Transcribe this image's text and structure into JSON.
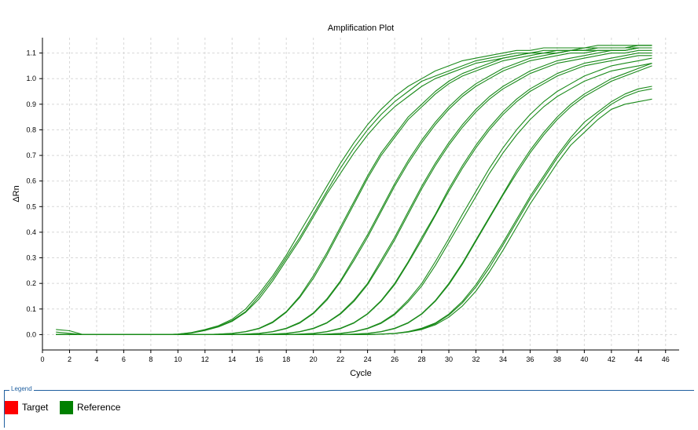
{
  "chart_data": {
    "type": "line",
    "title": "Amplification Plot",
    "xlabel": "Cycle",
    "ylabel": "ΔRn",
    "xlim": [
      0,
      47
    ],
    "ylim": [
      -0.06,
      1.16
    ],
    "xticks": [
      0,
      2,
      4,
      6,
      8,
      10,
      12,
      14,
      16,
      18,
      20,
      22,
      24,
      26,
      28,
      30,
      32,
      34,
      36,
      38,
      40,
      42,
      44,
      46
    ],
    "yticks": [
      0.0,
      0.1,
      0.2,
      0.3,
      0.4,
      0.5,
      0.6,
      0.7,
      0.8,
      0.9,
      1.0,
      1.1
    ],
    "grid": true,
    "line_color": "#1a8a1a",
    "x": [
      1,
      2,
      3,
      4,
      5,
      6,
      7,
      8,
      9,
      10,
      11,
      12,
      13,
      14,
      15,
      16,
      17,
      18,
      19,
      20,
      21,
      22,
      23,
      24,
      25,
      26,
      27,
      28,
      29,
      30,
      31,
      32,
      33,
      34,
      35,
      36,
      37,
      38,
      39,
      40,
      41,
      42,
      43,
      44,
      45
    ],
    "series": [
      {
        "values": [
          0.02,
          0.015,
          0.0,
          0.0,
          0.0,
          0.0,
          0.0,
          0.0,
          0.0,
          0.002,
          0.008,
          0.02,
          0.035,
          0.06,
          0.1,
          0.16,
          0.23,
          0.31,
          0.4,
          0.49,
          0.58,
          0.67,
          0.75,
          0.82,
          0.88,
          0.93,
          0.97,
          1.0,
          1.03,
          1.05,
          1.07,
          1.08,
          1.09,
          1.1,
          1.11,
          1.11,
          1.12,
          1.12,
          1.12,
          1.12,
          1.13,
          1.13,
          1.13,
          1.13,
          1.13
        ]
      },
      {
        "values": [
          0.01,
          0.005,
          0.0,
          0.0,
          0.0,
          0.0,
          0.0,
          0.0,
          0.0,
          0.002,
          0.007,
          0.018,
          0.032,
          0.055,
          0.09,
          0.15,
          0.22,
          0.3,
          0.38,
          0.47,
          0.56,
          0.65,
          0.73,
          0.8,
          0.86,
          0.91,
          0.95,
          0.99,
          1.01,
          1.03,
          1.05,
          1.07,
          1.08,
          1.09,
          1.1,
          1.1,
          1.11,
          1.11,
          1.11,
          1.12,
          1.12,
          1.12,
          1.12,
          1.12,
          1.12
        ]
      },
      {
        "values": [
          0.0,
          0.0,
          0.0,
          0.0,
          0.0,
          0.0,
          0.0,
          0.0,
          0.0,
          0.001,
          0.006,
          0.016,
          0.03,
          0.052,
          0.087,
          0.14,
          0.21,
          0.29,
          0.37,
          0.46,
          0.55,
          0.63,
          0.71,
          0.78,
          0.84,
          0.89,
          0.93,
          0.97,
          1.0,
          1.02,
          1.04,
          1.06,
          1.07,
          1.08,
          1.09,
          1.1,
          1.1,
          1.1,
          1.11,
          1.11,
          1.11,
          1.11,
          1.11,
          1.12,
          1.12
        ]
      },
      {
        "values": [
          0.0,
          0.0,
          0.0,
          0.0,
          0.0,
          0.0,
          0.0,
          0.0,
          0.0,
          0.0,
          0.0,
          0.0,
          0.002,
          0.005,
          0.012,
          0.025,
          0.05,
          0.09,
          0.15,
          0.23,
          0.32,
          0.42,
          0.52,
          0.62,
          0.71,
          0.78,
          0.85,
          0.9,
          0.95,
          0.99,
          1.02,
          1.04,
          1.06,
          1.08,
          1.09,
          1.1,
          1.1,
          1.11,
          1.11,
          1.12,
          1.12,
          1.12,
          1.12,
          1.13,
          1.13
        ]
      },
      {
        "values": [
          0.0,
          0.0,
          0.0,
          0.0,
          0.0,
          0.0,
          0.0,
          0.0,
          0.0,
          0.0,
          0.0,
          0.0,
          0.002,
          0.004,
          0.011,
          0.023,
          0.047,
          0.087,
          0.145,
          0.22,
          0.31,
          0.41,
          0.51,
          0.61,
          0.7,
          0.77,
          0.84,
          0.89,
          0.94,
          0.98,
          1.01,
          1.03,
          1.05,
          1.07,
          1.08,
          1.09,
          1.1,
          1.1,
          1.11,
          1.11,
          1.12,
          1.12,
          1.12,
          1.12,
          1.12
        ]
      },
      {
        "values": [
          0.0,
          0.0,
          0.0,
          0.0,
          0.0,
          0.0,
          0.0,
          0.0,
          0.0,
          0.0,
          0.0,
          0.0,
          0.0,
          0.0,
          0.002,
          0.005,
          0.012,
          0.025,
          0.048,
          0.085,
          0.14,
          0.21,
          0.3,
          0.39,
          0.49,
          0.59,
          0.68,
          0.76,
          0.83,
          0.89,
          0.94,
          0.98,
          1.01,
          1.04,
          1.06,
          1.08,
          1.09,
          1.1,
          1.11,
          1.11,
          1.12,
          1.12,
          1.12,
          1.13,
          1.13
        ]
      },
      {
        "values": [
          0.0,
          0.0,
          0.0,
          0.0,
          0.0,
          0.0,
          0.0,
          0.0,
          0.0,
          0.0,
          0.0,
          0.0,
          0.0,
          0.0,
          0.002,
          0.004,
          0.011,
          0.023,
          0.045,
          0.082,
          0.135,
          0.205,
          0.29,
          0.38,
          0.48,
          0.58,
          0.67,
          0.75,
          0.82,
          0.88,
          0.93,
          0.97,
          1.0,
          1.03,
          1.05,
          1.07,
          1.08,
          1.09,
          1.1,
          1.1,
          1.11,
          1.11,
          1.11,
          1.12,
          1.12
        ]
      },
      {
        "values": [
          0.0,
          0.0,
          0.0,
          0.0,
          0.0,
          0.0,
          0.0,
          0.0,
          0.0,
          0.0,
          0.0,
          0.0,
          0.0,
          0.0,
          0.0,
          0.0,
          0.002,
          0.005,
          0.012,
          0.025,
          0.047,
          0.083,
          0.135,
          0.2,
          0.29,
          0.38,
          0.48,
          0.58,
          0.67,
          0.75,
          0.82,
          0.88,
          0.93,
          0.97,
          1.0,
          1.03,
          1.05,
          1.07,
          1.08,
          1.09,
          1.1,
          1.11,
          1.11,
          1.12,
          1.12
        ]
      },
      {
        "values": [
          0.0,
          0.0,
          0.0,
          0.0,
          0.0,
          0.0,
          0.0,
          0.0,
          0.0,
          0.0,
          0.0,
          0.0,
          0.0,
          0.0,
          0.0,
          0.0,
          0.002,
          0.004,
          0.011,
          0.023,
          0.045,
          0.08,
          0.13,
          0.195,
          0.28,
          0.37,
          0.47,
          0.57,
          0.66,
          0.74,
          0.81,
          0.87,
          0.92,
          0.96,
          0.99,
          1.02,
          1.04,
          1.06,
          1.07,
          1.08,
          1.09,
          1.1,
          1.1,
          1.11,
          1.11
        ]
      },
      {
        "values": [
          0.0,
          0.0,
          0.0,
          0.0,
          0.0,
          0.0,
          0.0,
          0.0,
          0.0,
          0.0,
          0.0,
          0.0,
          0.0,
          0.0,
          0.0,
          0.0,
          0.0,
          0.0,
          0.002,
          0.005,
          0.012,
          0.025,
          0.047,
          0.082,
          0.133,
          0.2,
          0.285,
          0.38,
          0.47,
          0.57,
          0.66,
          0.74,
          0.81,
          0.87,
          0.92,
          0.96,
          0.99,
          1.02,
          1.04,
          1.06,
          1.07,
          1.08,
          1.09,
          1.1,
          1.1
        ]
      },
      {
        "values": [
          0.0,
          0.0,
          0.0,
          0.0,
          0.0,
          0.0,
          0.0,
          0.0,
          0.0,
          0.0,
          0.0,
          0.0,
          0.0,
          0.0,
          0.0,
          0.0,
          0.0,
          0.0,
          0.002,
          0.004,
          0.011,
          0.023,
          0.045,
          0.08,
          0.13,
          0.195,
          0.28,
          0.37,
          0.465,
          0.56,
          0.65,
          0.73,
          0.8,
          0.86,
          0.91,
          0.95,
          0.98,
          1.01,
          1.03,
          1.05,
          1.06,
          1.07,
          1.08,
          1.09,
          1.09
        ]
      },
      {
        "values": [
          0.0,
          0.0,
          0.0,
          0.0,
          0.0,
          0.0,
          0.0,
          0.0,
          0.0,
          0.0,
          0.0,
          0.0,
          0.0,
          0.0,
          0.0,
          0.0,
          0.0,
          0.0,
          0.0,
          0.0,
          0.002,
          0.005,
          0.012,
          0.025,
          0.047,
          0.082,
          0.135,
          0.2,
          0.285,
          0.375,
          0.47,
          0.56,
          0.65,
          0.73,
          0.8,
          0.86,
          0.91,
          0.95,
          0.98,
          1.01,
          1.03,
          1.05,
          1.06,
          1.07,
          1.08
        ]
      },
      {
        "values": [
          0.0,
          0.0,
          0.0,
          0.0,
          0.0,
          0.0,
          0.0,
          0.0,
          0.0,
          0.0,
          0.0,
          0.0,
          0.0,
          0.0,
          0.0,
          0.0,
          0.0,
          0.0,
          0.0,
          0.0,
          0.002,
          0.004,
          0.011,
          0.023,
          0.044,
          0.078,
          0.128,
          0.19,
          0.27,
          0.36,
          0.45,
          0.54,
          0.63,
          0.71,
          0.78,
          0.84,
          0.89,
          0.93,
          0.96,
          0.99,
          1.01,
          1.03,
          1.04,
          1.05,
          1.06
        ]
      },
      {
        "values": [
          0.0,
          0.0,
          0.0,
          0.0,
          0.0,
          0.0,
          0.0,
          0.0,
          0.0,
          0.0,
          0.0,
          0.0,
          0.0,
          0.0,
          0.0,
          0.0,
          0.0,
          0.0,
          0.0,
          0.0,
          0.0,
          0.0,
          0.002,
          0.005,
          0.012,
          0.025,
          0.047,
          0.082,
          0.133,
          0.2,
          0.28,
          0.37,
          0.46,
          0.55,
          0.64,
          0.72,
          0.79,
          0.85,
          0.9,
          0.94,
          0.97,
          1.0,
          1.02,
          1.04,
          1.06
        ]
      },
      {
        "values": [
          0.0,
          0.0,
          0.0,
          0.0,
          0.0,
          0.0,
          0.0,
          0.0,
          0.0,
          0.0,
          0.0,
          0.0,
          0.0,
          0.0,
          0.0,
          0.0,
          0.0,
          0.0,
          0.0,
          0.0,
          0.0,
          0.0,
          0.002,
          0.004,
          0.011,
          0.023,
          0.045,
          0.08,
          0.13,
          0.195,
          0.275,
          0.365,
          0.455,
          0.545,
          0.63,
          0.71,
          0.78,
          0.84,
          0.89,
          0.93,
          0.96,
          0.99,
          1.01,
          1.03,
          1.05
        ]
      },
      {
        "values": [
          0.0,
          0.0,
          0.0,
          0.0,
          0.0,
          0.0,
          0.0,
          0.0,
          0.0,
          0.0,
          0.0,
          0.0,
          0.0,
          0.0,
          0.0,
          0.0,
          0.0,
          0.0,
          0.0,
          0.0,
          0.0,
          0.0,
          0.0,
          0.0,
          0.002,
          0.005,
          0.012,
          0.025,
          0.045,
          0.08,
          0.13,
          0.195,
          0.275,
          0.36,
          0.45,
          0.54,
          0.62,
          0.7,
          0.77,
          0.83,
          0.87,
          0.91,
          0.94,
          0.96,
          0.97
        ]
      },
      {
        "values": [
          0.0,
          0.0,
          0.0,
          0.0,
          0.0,
          0.0,
          0.0,
          0.0,
          0.0,
          0.0,
          0.0,
          0.0,
          0.0,
          0.0,
          0.0,
          0.0,
          0.0,
          0.0,
          0.0,
          0.0,
          0.0,
          0.0,
          0.0,
          0.0,
          0.002,
          0.004,
          0.011,
          0.022,
          0.042,
          0.076,
          0.124,
          0.186,
          0.262,
          0.35,
          0.44,
          0.53,
          0.61,
          0.69,
          0.76,
          0.81,
          0.86,
          0.9,
          0.93,
          0.95,
          0.96
        ]
      },
      {
        "values": [
          0.0,
          0.0,
          0.0,
          0.0,
          0.0,
          0.0,
          0.0,
          0.0,
          0.0,
          0.0,
          0.0,
          0.0,
          0.0,
          0.0,
          0.0,
          0.0,
          0.0,
          0.0,
          0.0,
          0.0,
          0.0,
          0.0,
          0.0,
          0.0,
          0.002,
          0.004,
          0.01,
          0.02,
          0.038,
          0.068,
          0.112,
          0.17,
          0.245,
          0.33,
          0.42,
          0.51,
          0.59,
          0.67,
          0.74,
          0.79,
          0.84,
          0.88,
          0.9,
          0.91,
          0.92
        ]
      }
    ]
  },
  "legend": {
    "title": "Legend",
    "items": [
      {
        "label": "Target",
        "color": "#ff0000"
      },
      {
        "label": "Reference",
        "color": "#008000"
      }
    ]
  }
}
